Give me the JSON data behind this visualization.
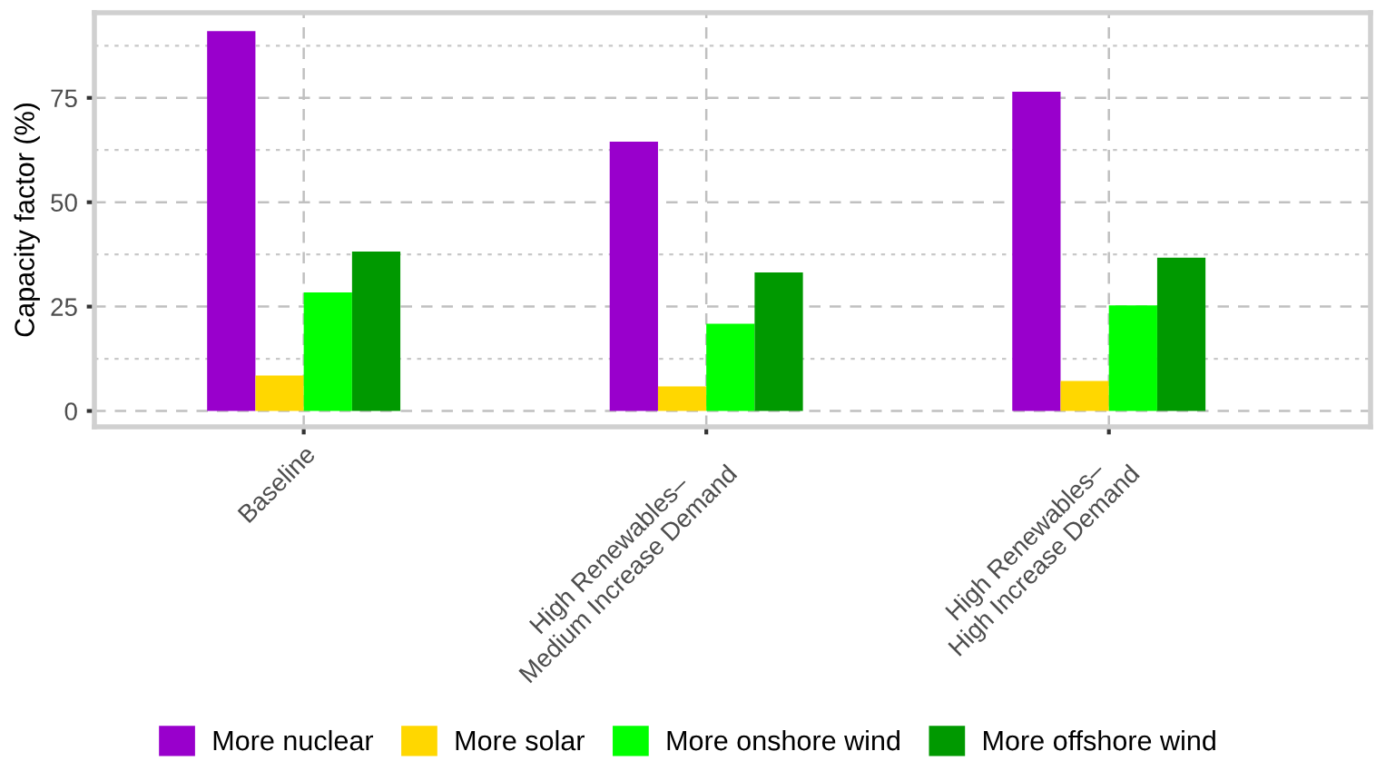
{
  "chart_data": {
    "type": "bar",
    "ylabel": "Capacity factor (%)",
    "categories": [
      "Baseline",
      "High Renewables–\nMedium Increase Demand",
      "High Renewables–\nHigh Increase Demand"
    ],
    "series": [
      {
        "name": "More nuclear",
        "color": "#9900cc",
        "values": [
          91.0,
          64.5,
          76.5
        ]
      },
      {
        "name": "More solar",
        "color": "#ffd700",
        "values": [
          8.5,
          5.9,
          7.2
        ]
      },
      {
        "name": "More onshore wind",
        "color": "#00ff00",
        "values": [
          28.4,
          20.9,
          25.3
        ]
      },
      {
        "name": "More offshore wind",
        "color": "#009900",
        "values": [
          38.2,
          33.2,
          36.7
        ]
      }
    ],
    "ylim": [
      -3.8,
      95.4
    ],
    "yticks": [
      0,
      25,
      50,
      75
    ],
    "grid": true,
    "legend": "bottom"
  }
}
